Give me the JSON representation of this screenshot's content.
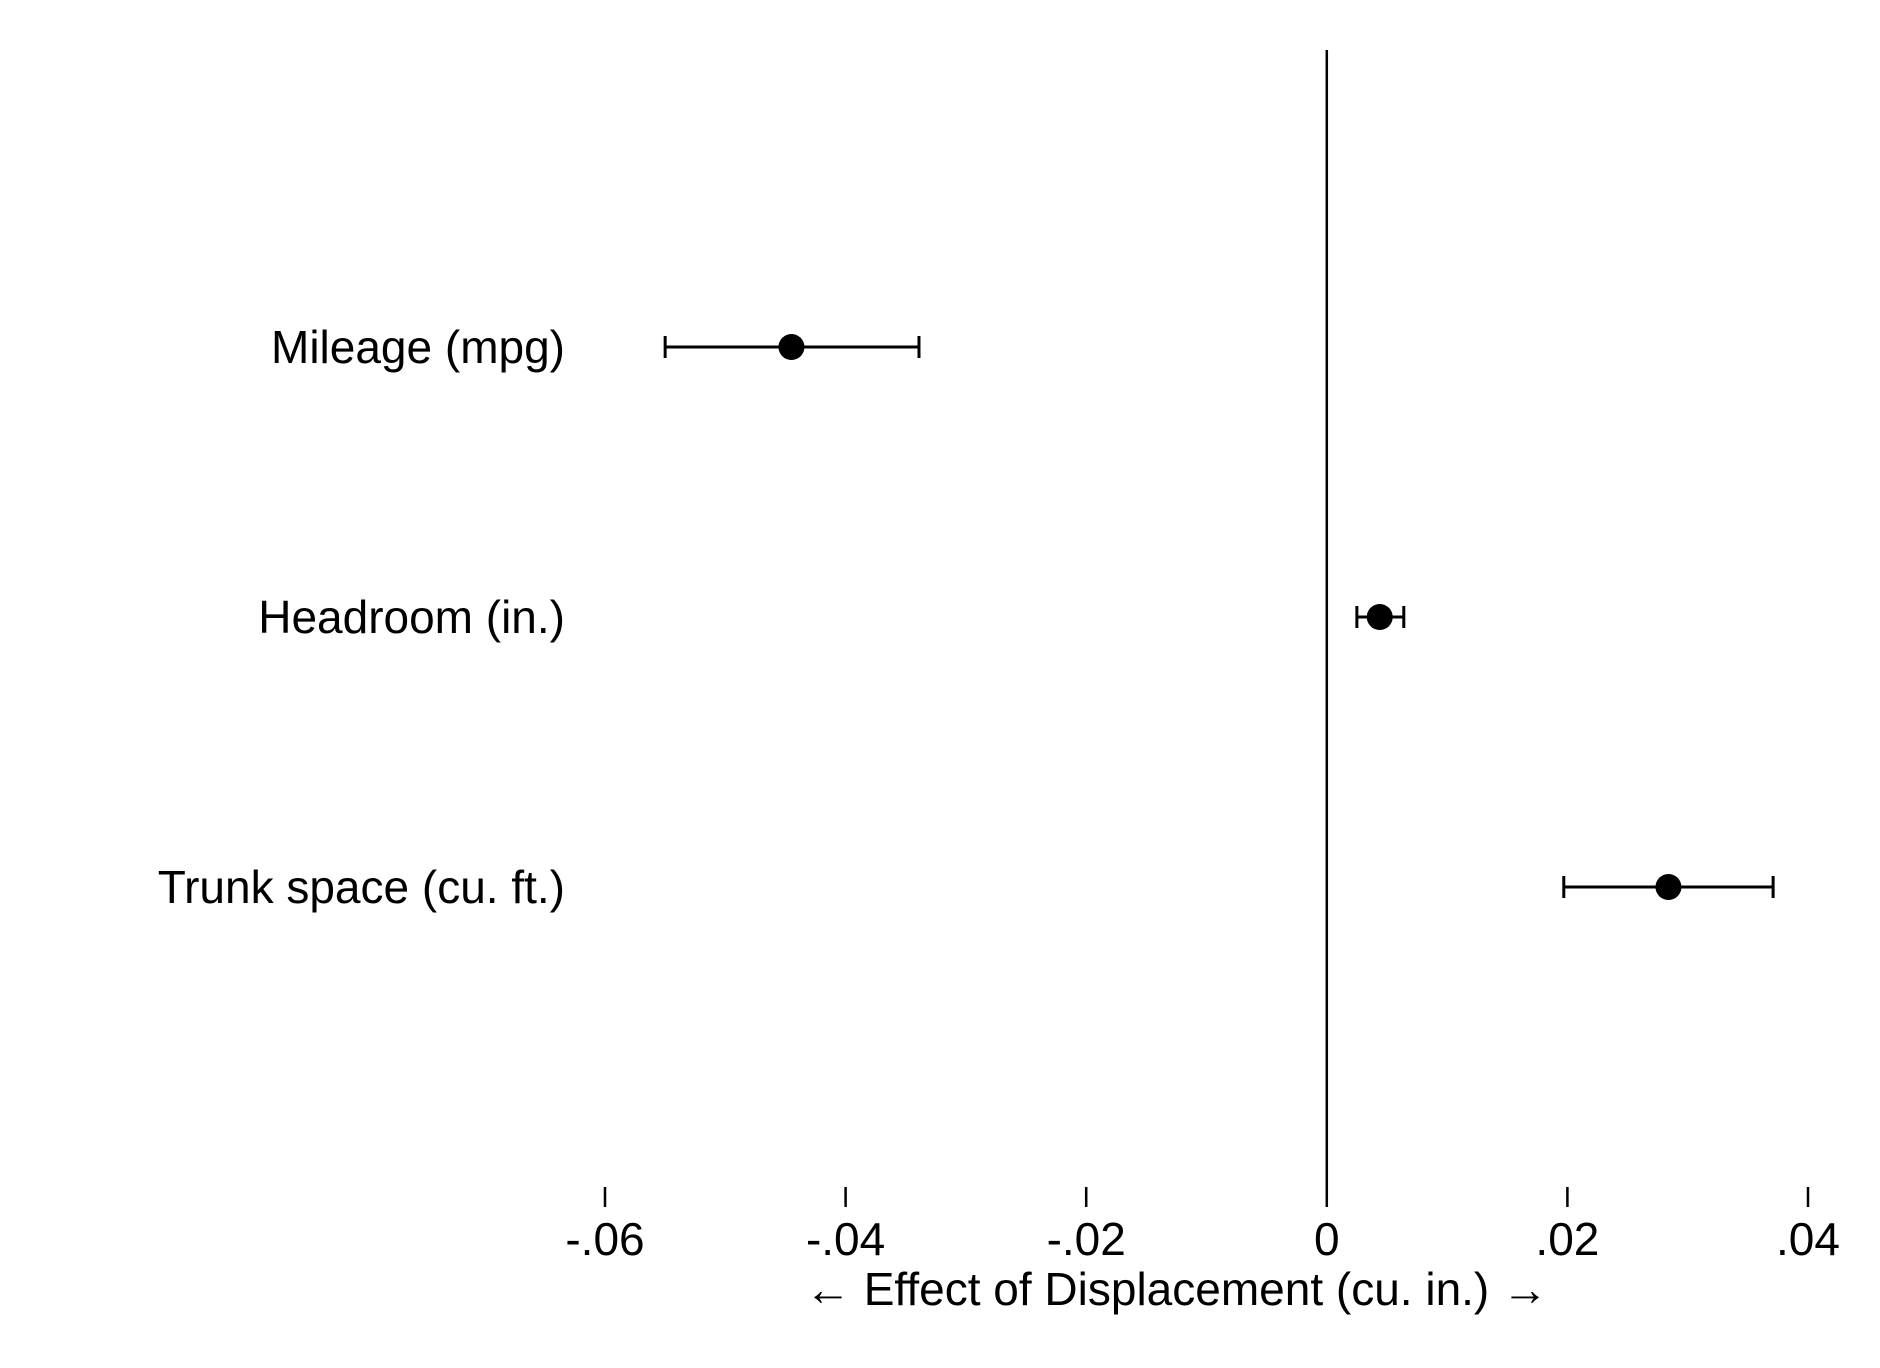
{
  "chart_data": {
    "type": "scatter",
    "subtype": "coefficient-plot",
    "orientation": "horizontal",
    "xlabel": "← Effect of Displacement (cu. in.) →",
    "xlim": [
      -0.06,
      0.04
    ],
    "xticks": [
      {
        "value": -0.06,
        "label": "-.06"
      },
      {
        "value": -0.04,
        "label": "-.04"
      },
      {
        "value": -0.02,
        "label": "-.02"
      },
      {
        "value": 0,
        "label": "0"
      },
      {
        "value": 0.02,
        "label": ".02"
      },
      {
        "value": 0.04,
        "label": ".04"
      }
    ],
    "reference_line": {
      "x": 0
    },
    "grid": false,
    "legend": "none",
    "marker_color": "#000000",
    "points": [
      {
        "category": "Mileage (mpg)",
        "estimate": -0.0445,
        "ci_low": -0.055,
        "ci_high": -0.0339
      },
      {
        "category": "Headroom (in.)",
        "estimate": 0.0044,
        "ci_low": 0.0025,
        "ci_high": 0.0064
      },
      {
        "category": "Trunk space (cu. ft.)",
        "estimate": 0.0284,
        "ci_low": 0.0197,
        "ci_high": 0.0371
      }
    ]
  }
}
